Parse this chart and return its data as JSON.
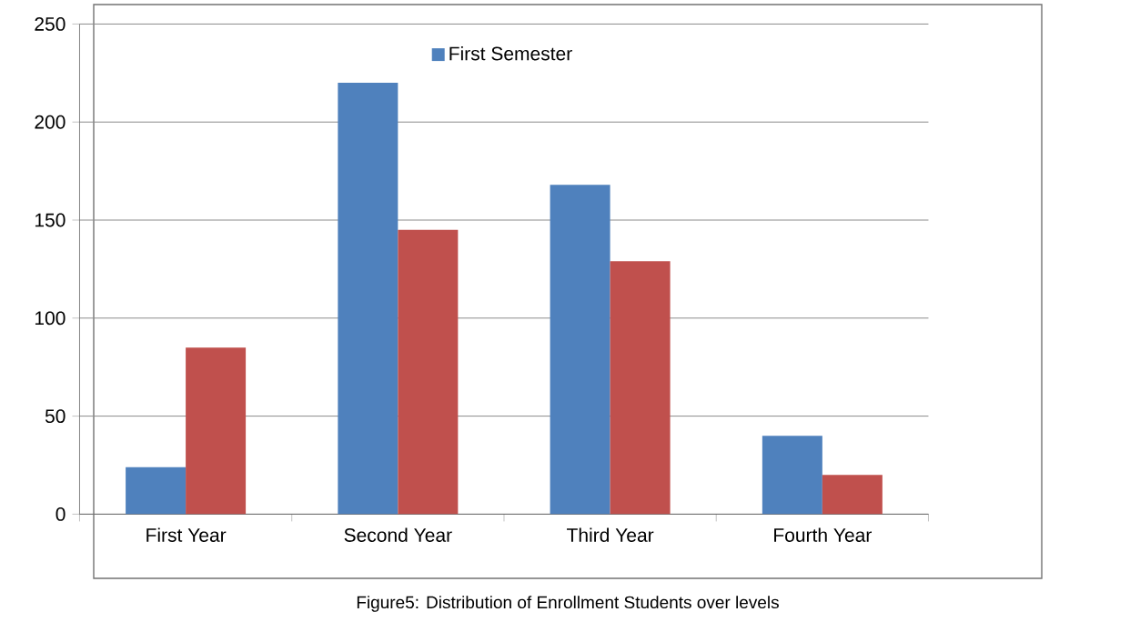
{
  "chart_data": {
    "type": "bar",
    "categories": [
      "First Year",
      "Second Year",
      "Third Year",
      "Fourth Year"
    ],
    "series": [
      {
        "name": "First Semester",
        "color": "#4f81bd",
        "values": [
          24,
          220,
          168,
          40
        ]
      },
      {
        "color": "#c0504d",
        "values": [
          85,
          145,
          129,
          20
        ]
      }
    ],
    "ylim": [
      0,
      250
    ],
    "yticks": [
      0,
      50,
      100,
      150,
      200,
      250
    ],
    "grid": "y",
    "legend": "top",
    "annotations": [
      "Figure5: Distribution of Enrollment Students over levels"
    ]
  }
}
